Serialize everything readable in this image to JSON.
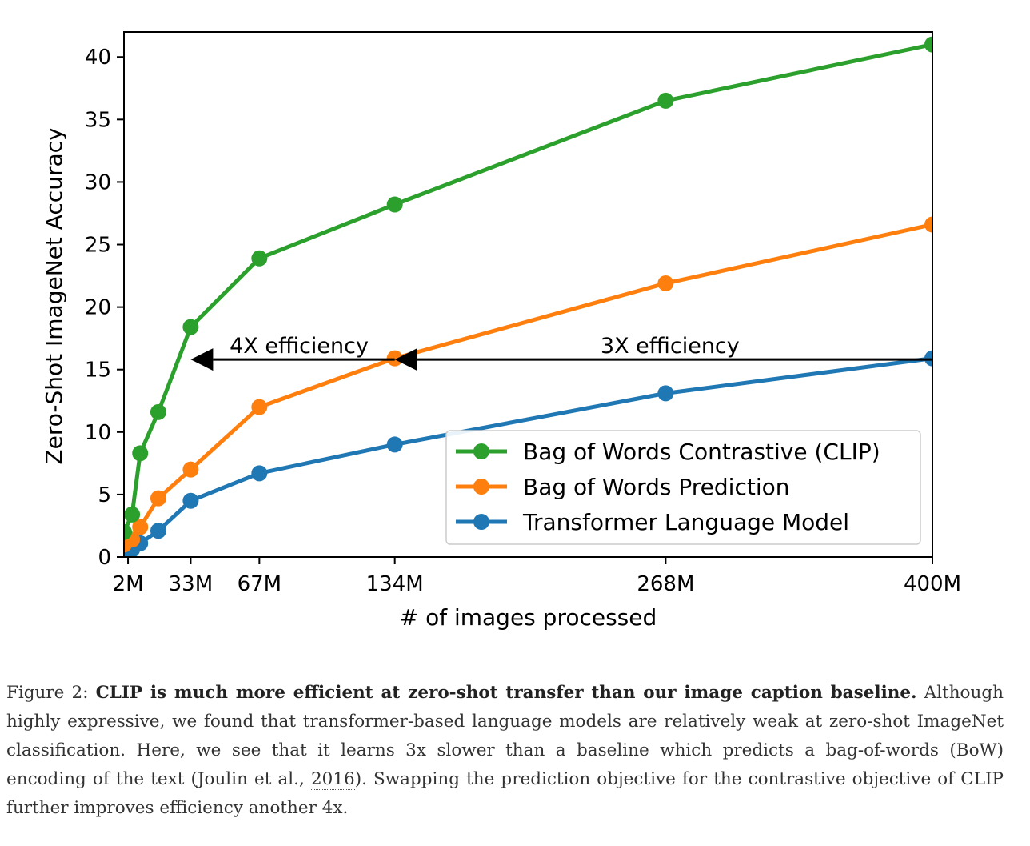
{
  "chart_data": {
    "type": "line",
    "title": "",
    "xlabel": "# of images processed",
    "ylabel": "Zero-Shot ImageNet Accuracy",
    "x_ticks": [
      {
        "value": 2,
        "label": "2M"
      },
      {
        "value": 33,
        "label": "33M"
      },
      {
        "value": 67,
        "label": "67M"
      },
      {
        "value": 134,
        "label": "134M"
      },
      {
        "value": 268,
        "label": "268M"
      },
      {
        "value": 400,
        "label": "400M"
      }
    ],
    "y_ticks": [
      0,
      5,
      10,
      15,
      20,
      25,
      30,
      35,
      40
    ],
    "xlim": [
      0,
      400
    ],
    "ylim": [
      0,
      42
    ],
    "grid": false,
    "legend_position": "lower-right",
    "series": [
      {
        "name": "Bag of Words Contrastive (CLIP)",
        "color": "#2ca02c",
        "x": [
          0,
          4,
          8,
          17,
          33,
          67,
          134,
          268,
          400
        ],
        "y": [
          2.0,
          3.4,
          8.3,
          11.6,
          18.4,
          23.9,
          28.2,
          36.5,
          41.0
        ]
      },
      {
        "name": "Bag of Words Prediction",
        "color": "#ff7f0e",
        "x": [
          0,
          4,
          8,
          17,
          33,
          67,
          134,
          268,
          400
        ],
        "y": [
          1.0,
          1.4,
          2.4,
          4.7,
          7.0,
          12.0,
          15.9,
          21.9,
          26.6
        ]
      },
      {
        "name": "Transformer Language Model",
        "color": "#1f77b4",
        "x": [
          0,
          4,
          8,
          17,
          33,
          67,
          134,
          268,
          400
        ],
        "y": [
          0.4,
          0.6,
          1.1,
          2.1,
          4.5,
          6.7,
          9.0,
          13.1,
          15.9
        ]
      }
    ],
    "annotations": [
      {
        "text": "4X efficiency",
        "arrow_from_x": 134,
        "arrow_to_x": 33,
        "y": 16
      },
      {
        "text": "3X efficiency",
        "arrow_from_x": 400,
        "arrow_to_x": 134,
        "y": 16
      }
    ]
  },
  "caption": {
    "label": "Figure 2:",
    "bold": "CLIP is much more efficient at zero-shot transfer than our image caption baseline.",
    "text_before_cite": "Although highly expressive, we found that transformer-based language models are relatively weak at zero-shot ImageNet classification. Here, we see that it learns 3x slower than a baseline which predicts a bag-of-words (BoW) encoding of the text (Joulin et al.,",
    "cite": "2016",
    "text_after_cite": "). Swapping the prediction objective for the contrastive objective of CLIP further improves efficiency another 4x."
  }
}
